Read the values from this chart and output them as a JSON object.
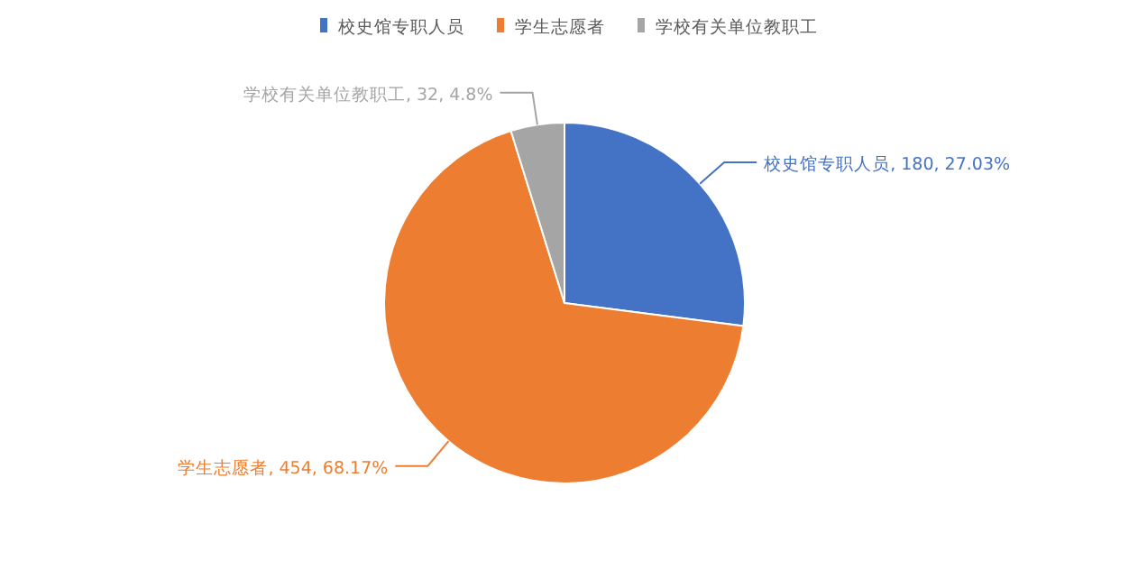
{
  "chart_data": {
    "type": "pie",
    "legend": "top",
    "categories": [
      "校史馆专职人员",
      "学生志愿者",
      "学校有关单位教职工"
    ],
    "values": [
      180,
      454,
      32
    ],
    "value_labels": [
      "校史馆专职人员, 180, 27.03%",
      "学生志愿者, 454, 68.17%",
      "学校有关单位教职工, 32, 4.8%"
    ],
    "colors": [
      "#4472c4",
      "#ed7d31",
      "#a5a5a5"
    ]
  }
}
